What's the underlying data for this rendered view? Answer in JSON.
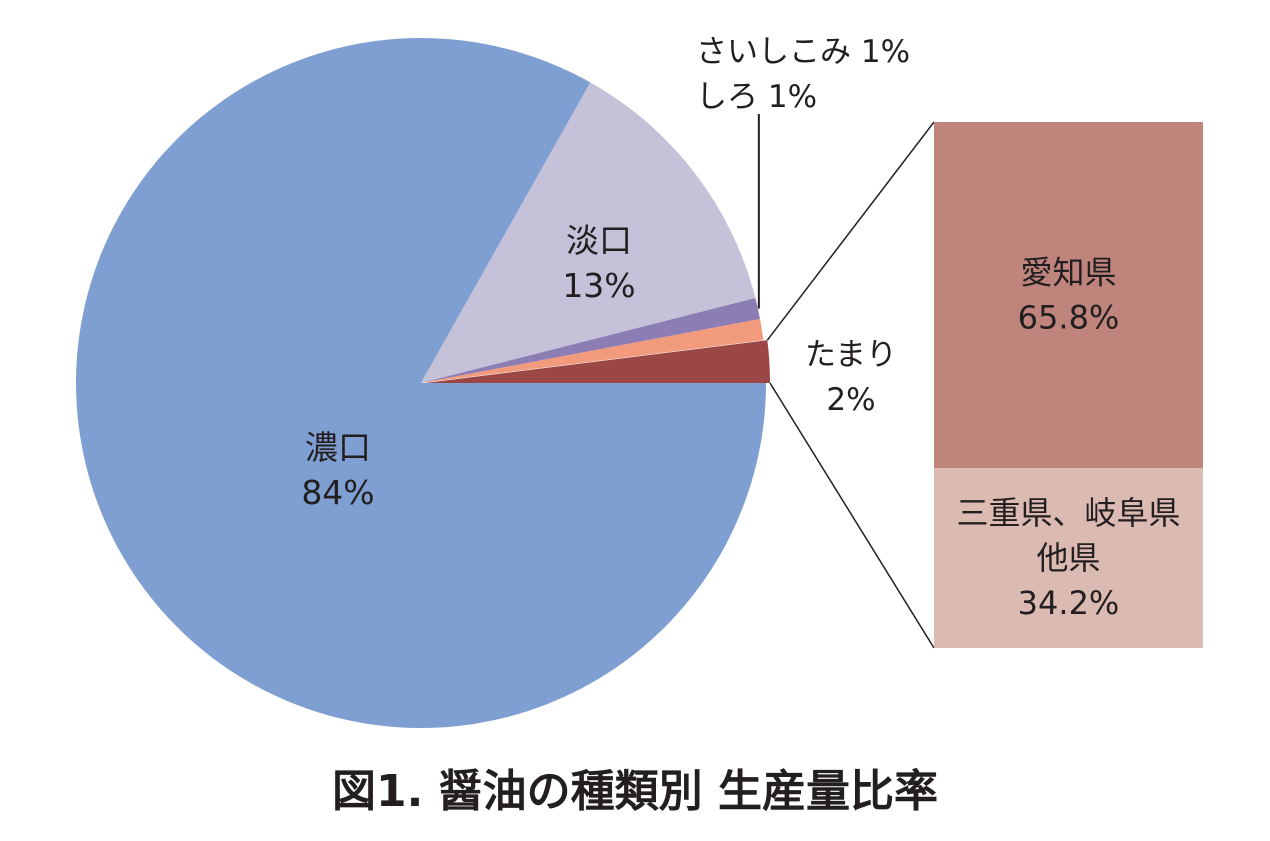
{
  "chart_data": [
    {
      "type": "pie",
      "title": "",
      "unit": "%",
      "slices": [
        {
          "label": "濃口",
          "value": 84,
          "value_text": "84%",
          "color": "#7f9fd2"
        },
        {
          "label": "淡口",
          "value": 13,
          "value_text": "13%",
          "color": "#c5c1d8"
        },
        {
          "label": "さいしこみ",
          "value": 1,
          "value_text": "1%",
          "color": "#8d7db5"
        },
        {
          "label": "しろ",
          "value": 1,
          "value_text": "1%",
          "color": "#f19a7c"
        },
        {
          "label": "たまり",
          "value": 2,
          "value_text": "2%",
          "color": "#9c4646"
        }
      ],
      "exploded_slice": "たまり"
    },
    {
      "type": "bar",
      "stacked": true,
      "breakdown_of": "たまり",
      "categories": [
        "愛知県",
        "三重県、岐阜県 他県"
      ],
      "values": [
        65.8,
        34.2
      ],
      "series": [
        {
          "label_lines": [
            "愛知県"
          ],
          "value": 65.8,
          "value_text": "65.8%",
          "color": "#bf857c"
        },
        {
          "label_lines": [
            "三重県、岐阜県",
            "他県"
          ],
          "value": 34.2,
          "value_text": "34.2%",
          "color": "#dbbab2"
        }
      ]
    }
  ],
  "figure": {
    "caption": "図1. 醤油の種類別 生産量比率",
    "line_color": "#231f20"
  }
}
